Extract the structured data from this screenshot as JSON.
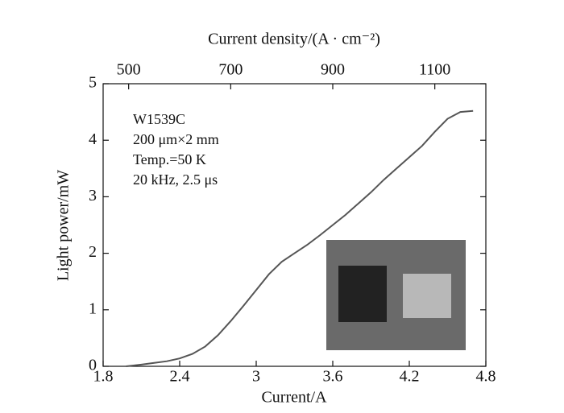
{
  "chart_data": {
    "type": "line",
    "x_label": "Current/A",
    "y_label": "Light power/mW",
    "x2_label": "Current density/(A · cm⁻²)",
    "annotations": [
      "W1539C",
      "200 μm×2 mm",
      "Temp.=50 K",
      "20 kHz, 2.5 μs"
    ],
    "x": [
      1.98,
      2.1,
      2.2,
      2.3,
      2.4,
      2.5,
      2.6,
      2.7,
      2.8,
      2.9,
      3.0,
      3.1,
      3.2,
      3.3,
      3.4,
      3.5,
      3.6,
      3.7,
      3.8,
      3.9,
      4.0,
      4.1,
      4.2,
      4.3,
      4.4,
      4.5,
      4.6,
      4.7
    ],
    "series": [
      {
        "name": "Light power",
        "color": "#555555",
        "values": [
          0.0,
          0.03,
          0.06,
          0.09,
          0.14,
          0.22,
          0.35,
          0.55,
          0.8,
          1.07,
          1.35,
          1.63,
          1.85,
          2.0,
          2.15,
          2.32,
          2.5,
          2.68,
          2.88,
          3.08,
          3.3,
          3.5,
          3.7,
          3.9,
          4.15,
          4.38,
          4.5,
          4.52
        ]
      }
    ],
    "xlim": [
      1.8,
      4.8
    ],
    "xticks": [
      1.8,
      2.4,
      3.0,
      3.6,
      4.2,
      4.8
    ],
    "ylim": [
      0,
      5
    ],
    "yticks": [
      0,
      1,
      2,
      3,
      4,
      5
    ],
    "x2lim": [
      450,
      1200
    ],
    "x2ticks": [
      500,
      700,
      900,
      1100
    ]
  }
}
